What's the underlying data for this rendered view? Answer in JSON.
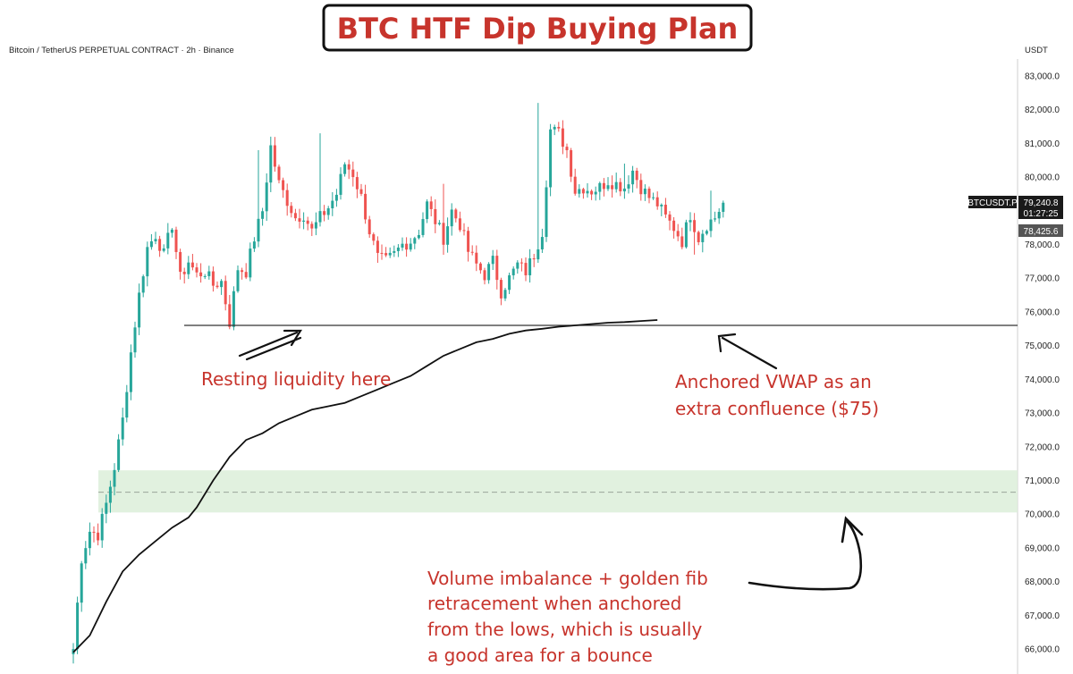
{
  "title": "BTC HTF Dip Buying Plan",
  "header_info": "Bitcoin / TetherUS PERPETUAL CONTRACT · 2h · Binance",
  "currency": "USDT",
  "price_tags": {
    "symbol": "BTCUSDT.P",
    "last_price": "79,240.8",
    "countdown": "01:27:25",
    "secondary_price": "78,425.6"
  },
  "annotations": {
    "resting": "Resting liquidity here",
    "vwap_line1": "Anchored VWAP as an",
    "vwap_line2": "extra confluence ($75)",
    "imbalance_line1": "Volume imbalance + golden fib",
    "imbalance_line2": "retracement when anchored",
    "imbalance_line3": "from the lows, which is usually",
    "imbalance_line4": "a good area for a bounce"
  },
  "colors": {
    "up": "#26a69a",
    "down": "#ef5350",
    "zone": "#dcefd9",
    "annotation": "#c7342c"
  },
  "chart_data": {
    "type": "candlestick",
    "y_axis": {
      "range": [
        65800,
        83800
      ],
      "ticks": [
        66000,
        67000,
        68000,
        69000,
        70000,
        71000,
        72000,
        73000,
        74000,
        75000,
        76000,
        77000,
        78000,
        79000,
        80000,
        81000,
        82000,
        83000
      ],
      "tick_labels": [
        "66,000.0",
        "67,000.0",
        "68,000.0",
        "69,000.0",
        "70,000.0",
        "71,000.0",
        "72,000.0",
        "73,000.0",
        "74,000.0",
        "75,000.0",
        "76,000.0",
        "77,000.0",
        "78,000.0",
        "79,000.0",
        "80,000.0",
        "81,000.0",
        "82,000.0",
        "83,000.0"
      ]
    },
    "close_path": [
      [
        0,
        66000
      ],
      [
        2,
        68700
      ],
      [
        4,
        69500
      ],
      [
        6,
        69400
      ],
      [
        8,
        70300
      ],
      [
        10,
        71400
      ],
      [
        12,
        72800
      ],
      [
        14,
        74800
      ],
      [
        16,
        76500
      ],
      [
        18,
        77900
      ],
      [
        20,
        78300
      ],
      [
        22,
        77700
      ],
      [
        24,
        78600
      ],
      [
        26,
        77000
      ],
      [
        28,
        77500
      ],
      [
        30,
        77100
      ],
      [
        32,
        77200
      ],
      [
        34,
        76800
      ],
      [
        36,
        76900
      ],
      [
        38,
        75700
      ],
      [
        40,
        77300
      ],
      [
        42,
        77200
      ],
      [
        44,
        78200
      ],
      [
        46,
        79000
      ],
      [
        48,
        80900
      ],
      [
        50,
        79800
      ],
      [
        52,
        79300
      ],
      [
        54,
        78800
      ],
      [
        56,
        78900
      ],
      [
        58,
        78400
      ],
      [
        60,
        78800
      ],
      [
        62,
        79100
      ],
      [
        64,
        79500
      ],
      [
        66,
        80400
      ],
      [
        68,
        80100
      ],
      [
        70,
        79400
      ],
      [
        72,
        78400
      ],
      [
        74,
        77600
      ],
      [
        76,
        77500
      ],
      [
        78,
        77700
      ],
      [
        80,
        78000
      ],
      [
        82,
        78100
      ],
      [
        84,
        78400
      ],
      [
        86,
        79200
      ],
      [
        88,
        78700
      ],
      [
        90,
        78200
      ],
      [
        92,
        79000
      ],
      [
        94,
        78600
      ],
      [
        96,
        77800
      ],
      [
        98,
        77400
      ],
      [
        100,
        77100
      ],
      [
        102,
        77500
      ],
      [
        104,
        76600
      ],
      [
        106,
        77000
      ],
      [
        108,
        77400
      ],
      [
        110,
        77200
      ],
      [
        112,
        77700
      ],
      [
        114,
        78400
      ],
      [
        116,
        81400
      ],
      [
        118,
        81300
      ],
      [
        120,
        80800
      ],
      [
        122,
        79600
      ],
      [
        124,
        79700
      ],
      [
        126,
        79600
      ],
      [
        128,
        79700
      ],
      [
        130,
        79900
      ],
      [
        132,
        79800
      ],
      [
        134,
        79700
      ],
      [
        136,
        80200
      ],
      [
        138,
        79700
      ],
      [
        140,
        79400
      ],
      [
        142,
        79200
      ],
      [
        144,
        78800
      ],
      [
        146,
        78500
      ],
      [
        148,
        78100
      ],
      [
        150,
        78900
      ],
      [
        152,
        78200
      ],
      [
        154,
        78600
      ],
      [
        156,
        78800
      ],
      [
        158,
        79240
      ]
    ],
    "spikes": [
      [
        45,
        80800
      ],
      [
        48,
        81200
      ],
      [
        60,
        81300
      ],
      [
        90,
        79800
      ],
      [
        104,
        76200
      ],
      [
        113,
        82200
      ],
      [
        134,
        80400
      ],
      [
        151,
        77700
      ],
      [
        155,
        79600
      ]
    ],
    "horizontal_levels": [
      {
        "price": 75600,
        "label": "Resting liquidity here"
      }
    ],
    "zone": {
      "low": 70050,
      "high": 71300,
      "mid": 70650
    },
    "vwap": [
      [
        0,
        65900
      ],
      [
        4,
        66400
      ],
      [
        8,
        67400
      ],
      [
        12,
        68300
      ],
      [
        16,
        68800
      ],
      [
        20,
        69200
      ],
      [
        24,
        69600
      ],
      [
        28,
        69900
      ],
      [
        30,
        70200
      ],
      [
        34,
        71000
      ],
      [
        38,
        71700
      ],
      [
        42,
        72200
      ],
      [
        46,
        72400
      ],
      [
        50,
        72700
      ],
      [
        54,
        72900
      ],
      [
        58,
        73100
      ],
      [
        62,
        73200
      ],
      [
        66,
        73300
      ],
      [
        70,
        73500
      ],
      [
        74,
        73700
      ],
      [
        78,
        73900
      ],
      [
        82,
        74100
      ],
      [
        86,
        74400
      ],
      [
        90,
        74700
      ],
      [
        94,
        74900
      ],
      [
        98,
        75100
      ],
      [
        102,
        75200
      ],
      [
        106,
        75350
      ],
      [
        110,
        75450
      ],
      [
        114,
        75500
      ],
      [
        118,
        75560
      ],
      [
        122,
        75600
      ],
      [
        126,
        75640
      ],
      [
        130,
        75680
      ],
      [
        134,
        75700
      ],
      [
        138,
        75730
      ],
      [
        142,
        75760
      ]
    ]
  }
}
